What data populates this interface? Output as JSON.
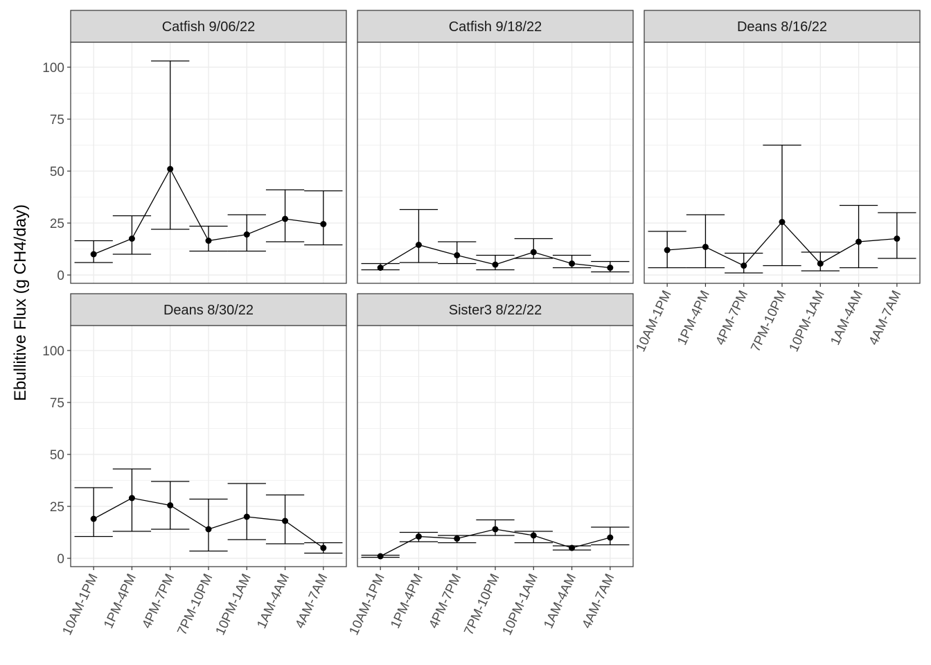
{
  "chart_data": {
    "type": "line",
    "ylabel": "Ebullitive Flux (g CH4/day)",
    "xlabel": "",
    "ylim": [
      -4,
      112
    ],
    "yticks": [
      0,
      25,
      50,
      75,
      100
    ],
    "categories": [
      "10AM-1PM",
      "1PM-4PM",
      "4PM-7PM",
      "7PM-10PM",
      "10PM-1AM",
      "1AM-4AM",
      "4AM-7AM"
    ],
    "grid": true,
    "error_bars": true,
    "facets": [
      {
        "title": "Catfish 9/06/22",
        "values": [
          10,
          17.5,
          51,
          16.5,
          19.5,
          27,
          24.5
        ],
        "lower": [
          6,
          10,
          22,
          11.5,
          11.5,
          16,
          14.5
        ],
        "upper": [
          16.5,
          28.5,
          103,
          23.5,
          29,
          41,
          40.5
        ]
      },
      {
        "title": "Catfish 9/18/22",
        "values": [
          3.5,
          14.5,
          9.5,
          5,
          11,
          5.5,
          3.5
        ],
        "lower": [
          2.5,
          6,
          5.5,
          2.5,
          8,
          3.5,
          1.5
        ],
        "upper": [
          5.5,
          31.5,
          16,
          9.5,
          17.5,
          9.5,
          6.5
        ]
      },
      {
        "title": "Deans 8/16/22",
        "values": [
          12,
          13.5,
          4.5,
          25.5,
          5.5,
          16,
          17.5
        ],
        "lower": [
          3.5,
          3.5,
          1,
          4.5,
          2,
          3.5,
          8
        ],
        "upper": [
          21,
          29,
          10.5,
          62.5,
          11,
          33.5,
          30
        ]
      },
      {
        "title": "Deans 8/30/22",
        "values": [
          19,
          29,
          25.5,
          14,
          20,
          18,
          5
        ],
        "lower": [
          10.5,
          13,
          14,
          3.5,
          9,
          7,
          2.5
        ],
        "upper": [
          34,
          43,
          37,
          28.5,
          36,
          30.5,
          7.5
        ]
      },
      {
        "title": "Sister3 8/22/22",
        "values": [
          1,
          10.5,
          9.5,
          14,
          11,
          5,
          10
        ],
        "lower": [
          0.5,
          8,
          7.5,
          11,
          7.5,
          4,
          6.5
        ],
        "upper": [
          1.5,
          12.5,
          11,
          18.5,
          13,
          6,
          15
        ]
      }
    ]
  }
}
